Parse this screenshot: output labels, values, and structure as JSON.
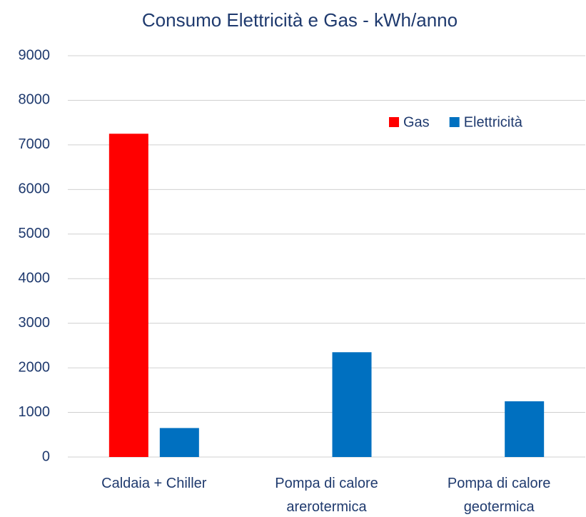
{
  "chart_data": {
    "type": "bar",
    "title": "Consumo Elettricità e Gas - kWh/anno",
    "categories": [
      "Caldaia + Chiller",
      "Pompa di calore\narerotermica",
      "Pompa di calore\ngeotermica"
    ],
    "series": [
      {
        "name": "Gas",
        "color": "#ff0000",
        "values": [
          7250,
          null,
          null
        ]
      },
      {
        "name": "Elettricità",
        "color": "#0070c0",
        "values": [
          650,
          2350,
          1250
        ]
      }
    ],
    "ylim": [
      0,
      9000
    ],
    "yticks": [
      0,
      1000,
      2000,
      3000,
      4000,
      5000,
      6000,
      7000,
      8000,
      9000
    ],
    "grid": true,
    "legend": "top-right"
  }
}
